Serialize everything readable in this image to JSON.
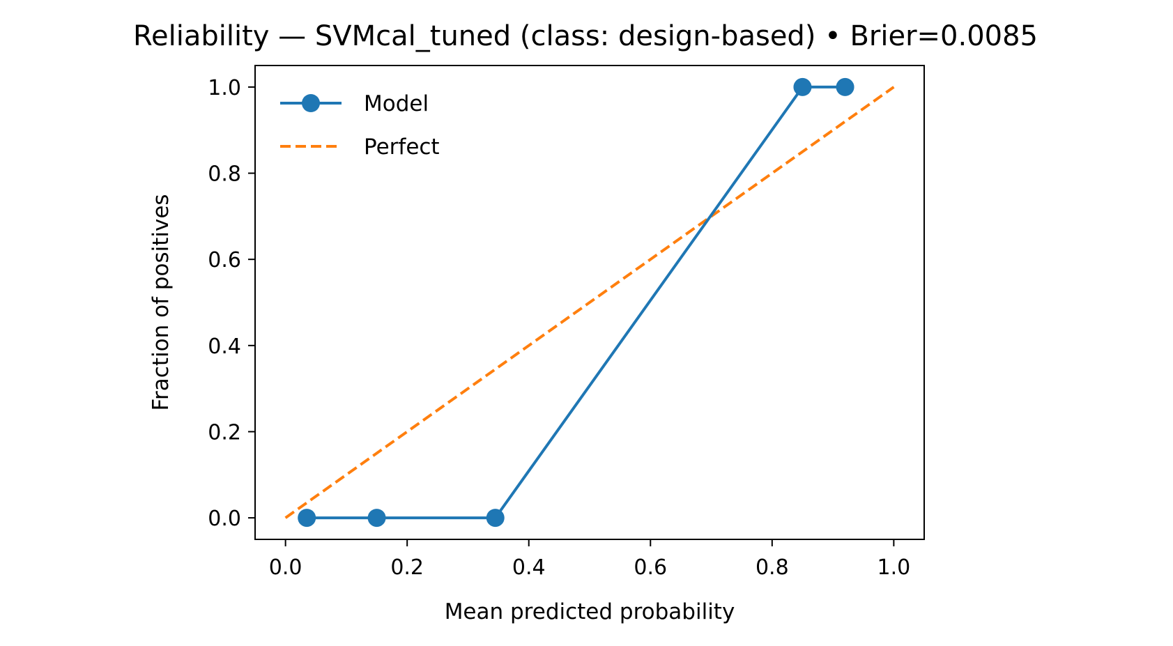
{
  "chart_data": {
    "type": "line",
    "title": "Reliability — SVMcal_tuned (class: design-based) • Brier=0.0085",
    "xlabel": "Mean predicted probability",
    "ylabel": "Fraction of positives",
    "xlim": [
      -0.05,
      1.05
    ],
    "ylim": [
      -0.05,
      1.05
    ],
    "xticks": [
      0.0,
      0.2,
      0.4,
      0.6,
      0.8,
      1.0
    ],
    "xtick_labels": [
      "0.0",
      "0.2",
      "0.4",
      "0.6",
      "0.8",
      "1.0"
    ],
    "yticks": [
      0.0,
      0.2,
      0.4,
      0.6,
      0.8,
      1.0
    ],
    "ytick_labels": [
      "0.0",
      "0.2",
      "0.4",
      "0.6",
      "0.8",
      "1.0"
    ],
    "grid": false,
    "legend_position": "top-left",
    "series": [
      {
        "name": "Model",
        "style": "solid-with-markers",
        "color": "#1f77b4",
        "x": [
          0.035,
          0.15,
          0.345,
          0.85,
          0.92
        ],
        "y": [
          0.0,
          0.0,
          0.0,
          1.0,
          1.0
        ]
      },
      {
        "name": "Perfect",
        "style": "dashed",
        "color": "#ff7f0e",
        "x": [
          0.0,
          1.0
        ],
        "y": [
          0.0,
          1.0
        ]
      }
    ]
  }
}
